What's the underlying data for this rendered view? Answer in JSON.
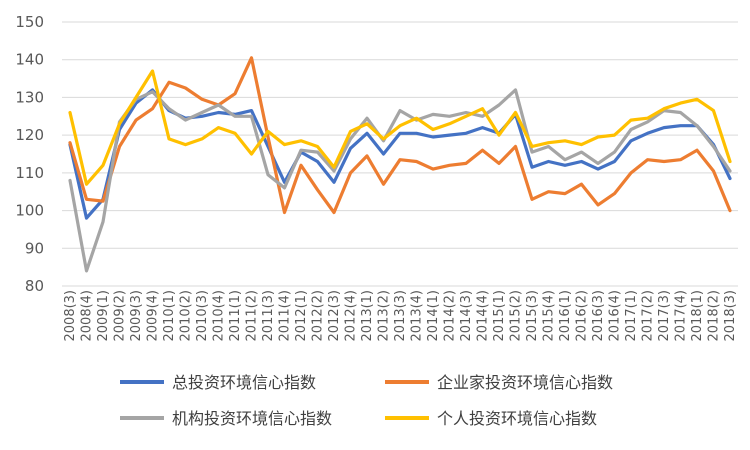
{
  "chart_data": {
    "type": "line",
    "title": "",
    "xlabel": "",
    "ylabel": "",
    "ylim": [
      80,
      150
    ],
    "yticks": [
      80,
      90,
      100,
      110,
      120,
      130,
      140,
      150
    ],
    "grid": true,
    "legend_position": "bottom",
    "categories": [
      "2008(3)",
      "2008(4)",
      "2009(1)",
      "2009(2)",
      "2009(3)",
      "2009(4)",
      "2010(1)",
      "2010(2)",
      "2010(3)",
      "2010(4)",
      "2011(1)",
      "2011(2)",
      "2011(3)",
      "2011(4)",
      "2012(1)",
      "2012(2)",
      "2012(3)",
      "2012(4)",
      "2013(1)",
      "2013(2)",
      "2013(3)",
      "2013(4)",
      "2014(1)",
      "2014(2)",
      "2014(3)",
      "2014(4)",
      "2015(1)",
      "2015(2)",
      "2015(3)",
      "2015(4)",
      "2016(1)",
      "2016(2)",
      "2016(3)",
      "2016(4)",
      "2017(1)",
      "2017(2)",
      "2017(3)",
      "2017(4)",
      "2018(1)",
      "2018(2)",
      "2018(3)"
    ],
    "series": [
      {
        "name": "总投资环境信心指数",
        "color": "#4472C4",
        "values": [
          117.5,
          98,
          103,
          121.5,
          128.5,
          132,
          126.5,
          124.5,
          125,
          126,
          125.5,
          126.5,
          117,
          107.5,
          115.5,
          113,
          107.5,
          116.5,
          120.5,
          115,
          120.5,
          120.5,
          119.5,
          120,
          120.5,
          122,
          120.5,
          125.5,
          111.5,
          113,
          112,
          113,
          111,
          113,
          118.5,
          120.5,
          122,
          122.5,
          122.5,
          117.5,
          108.5
        ]
      },
      {
        "name": "企业家投资环境信心指数",
        "color": "#ED7D31",
        "values": [
          118,
          103,
          102.5,
          117,
          124,
          127,
          134,
          132.5,
          129.5,
          128,
          131,
          140.5,
          119.5,
          99.5,
          112,
          105.5,
          99.5,
          110,
          114.5,
          107,
          113.5,
          113,
          111,
          112,
          112.5,
          116,
          112.5,
          117,
          103,
          105,
          104.5,
          107,
          101.5,
          104.5,
          110,
          113.5,
          113,
          113.5,
          116,
          110.5,
          100
        ]
      },
      {
        "name": "机构投资环境信心指数",
        "color": "#A5A5A5",
        "values": [
          108,
          84,
          97,
          123.5,
          129.5,
          131.5,
          127,
          124,
          126,
          128,
          125,
          125,
          109.5,
          106,
          116,
          115.5,
          110.5,
          119,
          124.5,
          118.5,
          126.5,
          124,
          125.5,
          125,
          126,
          125,
          128,
          132,
          115.5,
          117,
          113.5,
          115.5,
          112.5,
          115.5,
          121.5,
          123.5,
          126.5,
          126,
          122.5,
          117,
          110.5
        ]
      },
      {
        "name": "个人投资环境信心指数",
        "color": "#FFC000",
        "values": [
          126,
          107,
          112,
          123,
          130,
          137,
          119,
          117.5,
          119,
          122,
          120.5,
          115,
          121,
          117.5,
          118.5,
          117,
          111.5,
          121,
          123,
          119,
          122.5,
          124.5,
          121.5,
          123,
          125,
          127,
          120,
          126,
          117,
          118,
          118.5,
          117.5,
          119.5,
          120,
          124,
          124.5,
          127,
          128.5,
          129.5,
          126.5,
          113
        ]
      }
    ]
  }
}
